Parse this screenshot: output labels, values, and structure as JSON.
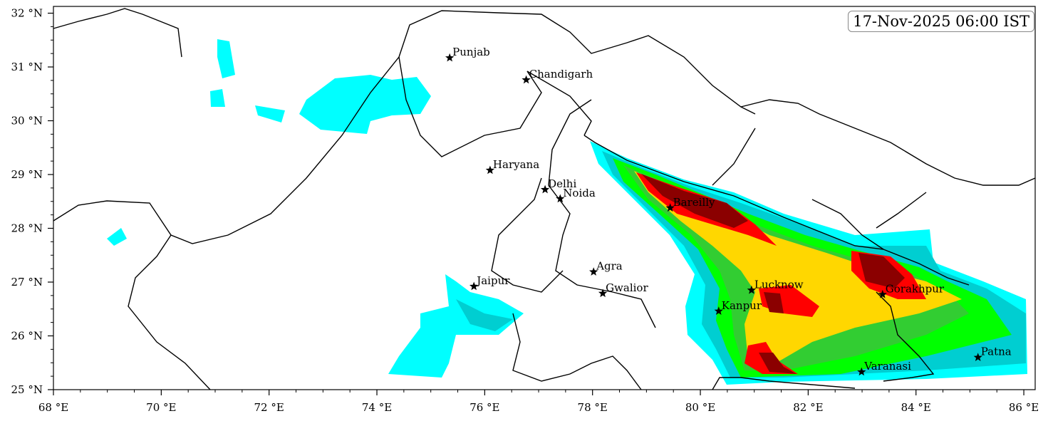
{
  "title_stamp": "17-Nov-2025 06:00 IST",
  "map": {
    "type": "filled-contour map",
    "lon_range": [
      68,
      86.2
    ],
    "lat_range": [
      25,
      32.1
    ],
    "x_ticks": [
      "68 °E",
      "70 °E",
      "72 °E",
      "74 °E",
      "76 °E",
      "78 °E",
      "80 °E",
      "82 °E",
      "84 °E",
      "86 °E"
    ],
    "x_tick_values": [
      68,
      70,
      72,
      74,
      76,
      78,
      80,
      82,
      84,
      86
    ],
    "y_ticks": [
      "25 °N",
      "26 °N",
      "27 °N",
      "28 °N",
      "29 °N",
      "30 °N",
      "31 °N",
      "32 °N"
    ],
    "y_tick_values": [
      25,
      26,
      27,
      28,
      29,
      30,
      31,
      32
    ],
    "contour_colors": [
      "#00ffff",
      "#00ced1",
      "#00ff00",
      "#32cd32",
      "#ffd700",
      "#ff0000",
      "#8b0000"
    ],
    "cities": [
      {
        "name": "Punjab",
        "lon": 75.35,
        "lat": 31.17
      },
      {
        "name": "Chandigarh",
        "lon": 76.77,
        "lat": 30.76
      },
      {
        "name": "Haryana",
        "lon": 76.1,
        "lat": 29.08
      },
      {
        "name": "Delhi",
        "lon": 77.12,
        "lat": 28.72
      },
      {
        "name": "Noida",
        "lon": 77.4,
        "lat": 28.55
      },
      {
        "name": "Bareilly",
        "lon": 79.44,
        "lat": 28.38
      },
      {
        "name": "Agra",
        "lon": 78.02,
        "lat": 27.19
      },
      {
        "name": "Gwalior",
        "lon": 78.19,
        "lat": 26.79
      },
      {
        "name": "Jaipur",
        "lon": 75.8,
        "lat": 26.92
      },
      {
        "name": "Lucknow",
        "lon": 80.95,
        "lat": 26.85
      },
      {
        "name": "Kanpur",
        "lon": 80.34,
        "lat": 26.46
      },
      {
        "name": "Gorakhpur",
        "lon": 83.38,
        "lat": 26.77
      },
      {
        "name": "Varanasi",
        "lon": 82.99,
        "lat": 25.33
      },
      {
        "name": "Patna",
        "lon": 85.15,
        "lat": 25.6
      }
    ]
  }
}
